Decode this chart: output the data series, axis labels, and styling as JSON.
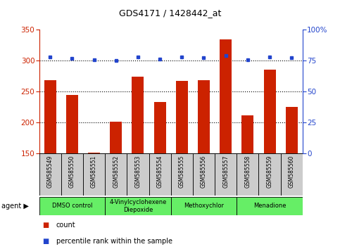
{
  "title": "GDS4171 / 1428442_at",
  "samples": [
    "GSM585549",
    "GSM585550",
    "GSM585551",
    "GSM585552",
    "GSM585553",
    "GSM585554",
    "GSM585555",
    "GSM585556",
    "GSM585557",
    "GSM585558",
    "GSM585559",
    "GSM585560"
  ],
  "count_values": [
    268,
    244,
    151,
    201,
    274,
    233,
    267,
    268,
    334,
    211,
    286,
    225
  ],
  "percentile_values": [
    78,
    77,
    76,
    75,
    78,
    76.5,
    78,
    77.5,
    79,
    76,
    78,
    77.5
  ],
  "bar_color": "#cc2200",
  "dot_color": "#2244cc",
  "ylim_left": [
    150,
    350
  ],
  "ylim_right": [
    0,
    100
  ],
  "yticks_left": [
    150,
    200,
    250,
    300,
    350
  ],
  "yticks_right": [
    0,
    25,
    50,
    75,
    100
  ],
  "grid_values": [
    200,
    250,
    300
  ],
  "agent_groups": [
    {
      "label": "DMSO control",
      "start": 0,
      "end": 3
    },
    {
      "label": "4-Vinylcyclohexene\nDiepoxide",
      "start": 3,
      "end": 6
    },
    {
      "label": "Methoxychlor",
      "start": 6,
      "end": 9
    },
    {
      "label": "Menadione",
      "start": 9,
      "end": 12
    }
  ],
  "agent_bg_color": "#66ee66",
  "sample_bg_color": "#cccccc",
  "legend_count_color": "#cc2200",
  "legend_dot_color": "#2244cc",
  "legend_count_label": "count",
  "legend_dot_label": "percentile rank within the sample",
  "fig_width": 4.83,
  "fig_height": 3.54,
  "dpi": 100
}
